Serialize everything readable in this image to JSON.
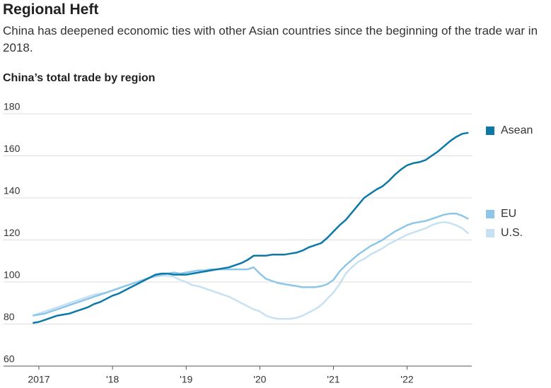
{
  "chart_data": {
    "type": "line",
    "title": "Regional Heft",
    "subtitle": "China has deepened economic ties with other Asian countries since the beginning of the trade war in 2018.",
    "chart_label": "China’s total trade by region",
    "categories": [
      null,
      "2017",
      null,
      null,
      null,
      null,
      null,
      null,
      null,
      null,
      null,
      null,
      null,
      "'18",
      null,
      null,
      null,
      null,
      null,
      null,
      null,
      null,
      null,
      null,
      null,
      "'19",
      null,
      null,
      null,
      null,
      null,
      null,
      null,
      null,
      null,
      null,
      null,
      "'20",
      null,
      null,
      null,
      null,
      null,
      null,
      null,
      null,
      null,
      null,
      null,
      "'21",
      null,
      null,
      null,
      null,
      null,
      null,
      null,
      null,
      null,
      null,
      null,
      "'22",
      null,
      null,
      null,
      null,
      null,
      null,
      null,
      null,
      null,
      null
    ],
    "series": [
      {
        "name": "Asean",
        "color": "#0b78a8",
        "values": [
          80.5,
          81,
          82,
          83,
          84,
          84.5,
          85,
          86,
          87,
          88,
          89.5,
          90.5,
          92,
          93.5,
          94.5,
          96,
          97.5,
          99,
          100.5,
          102,
          103.5,
          104,
          104,
          103.5,
          103.5,
          103.5,
          104,
          104.5,
          105,
          105.5,
          106,
          106.5,
          107,
          108,
          109,
          110.5,
          112.5,
          112.5,
          112.5,
          113,
          113,
          113,
          113.5,
          114,
          115,
          116.5,
          117.5,
          118.5,
          121,
          124,
          127,
          129.5,
          133,
          136.5,
          140,
          142,
          144,
          145.5,
          148,
          151,
          153.5,
          155.5,
          156.5,
          157,
          158,
          160,
          162,
          164.5,
          167,
          169,
          170.5,
          171
        ]
      },
      {
        "name": "EU",
        "color": "#8cc6e8",
        "values": [
          84,
          84.5,
          85,
          86,
          87,
          88,
          89,
          90,
          91,
          92,
          93,
          94,
          95,
          96,
          97,
          98,
          99,
          100,
          101,
          102,
          103,
          103.5,
          104,
          104.5,
          104,
          104.5,
          105,
          105.5,
          105.5,
          106,
          106,
          106,
          106,
          106,
          106,
          106,
          107,
          104,
          101.5,
          100.5,
          99.5,
          99,
          98.5,
          98,
          97.5,
          97.5,
          97.5,
          98,
          99,
          101,
          105,
          108,
          110.5,
          113,
          115,
          117,
          118.5,
          120,
          122,
          124,
          125.5,
          127,
          128,
          128.5,
          129,
          130,
          131,
          132,
          132.5,
          132.5,
          131.5,
          130
        ]
      },
      {
        "name": "U.S.",
        "color": "#c7e1f2",
        "values": [
          84,
          85,
          86,
          87,
          88,
          89,
          90,
          91,
          92,
          93,
          94,
          94.5,
          95,
          96,
          97,
          98,
          99,
          100,
          101,
          102,
          102.5,
          103,
          103,
          102.5,
          101,
          100,
          98.5,
          98,
          97,
          96,
          95,
          94,
          93,
          91.5,
          90,
          88.5,
          87,
          86,
          84,
          83,
          82.5,
          82.5,
          82.5,
          83,
          84,
          85.5,
          87,
          89,
          92,
          95,
          99,
          104,
          107,
          109.5,
          111,
          113,
          114.5,
          116,
          118,
          119.5,
          121,
          122.5,
          123.5,
          124.5,
          125.5,
          127,
          128,
          128.5,
          128,
          127,
          125.5,
          123
        ]
      }
    ],
    "ylim": [
      60,
      180
    ],
    "yticks": [
      60,
      80,
      100,
      120,
      140,
      160,
      180
    ],
    "grid": true,
    "legend": "right"
  }
}
